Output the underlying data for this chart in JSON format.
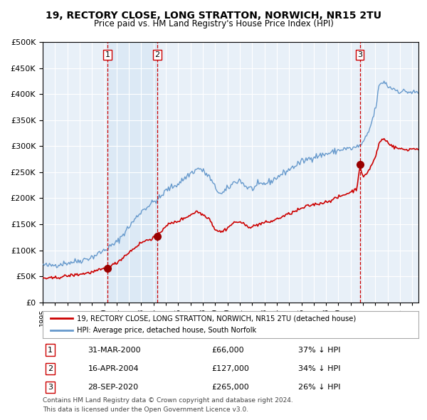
{
  "title": "19, RECTORY CLOSE, LONG STRATTON, NORWICH, NR15 2TU",
  "subtitle": "Price paid vs. HM Land Registry's House Price Index (HPI)",
  "ylabel": "",
  "background_color": "#ffffff",
  "plot_bg_color": "#e8f0f8",
  "grid_color": "#ffffff",
  "purchases": [
    {
      "date": "2000-03-31",
      "price": 66000,
      "label": "1",
      "pct": "37% ↓ HPI",
      "date_str": "31-MAR-2000"
    },
    {
      "date": "2004-04-16",
      "price": 127000,
      "label": "2",
      "pct": "34% ↓ HPI",
      "date_str": "16-APR-2004"
    },
    {
      "date": "2020-09-28",
      "price": 265000,
      "label": "3",
      "pct": "26% ↓ HPI",
      "date_str": "28-SEP-2020"
    }
  ],
  "legend_property_label": "19, RECTORY CLOSE, LONG STRATTON, NORWICH, NR15 2TU (detached house)",
  "legend_hpi_label": "HPI: Average price, detached house, South Norfolk",
  "footer_line1": "Contains HM Land Registry data © Crown copyright and database right 2024.",
  "footer_line2": "This data is licensed under the Open Government Licence v3.0.",
  "property_color": "#cc0000",
  "hpi_color": "#6699cc",
  "purchase_marker_color": "#990000",
  "dashed_line_color": "#cc0000",
  "shading_color": "#dce9f5",
  "ylim": [
    0,
    500000
  ],
  "yticks": [
    0,
    50000,
    100000,
    150000,
    200000,
    250000,
    300000,
    350000,
    400000,
    450000,
    500000
  ],
  "xstart": 1995.0,
  "xend": 2025.5
}
